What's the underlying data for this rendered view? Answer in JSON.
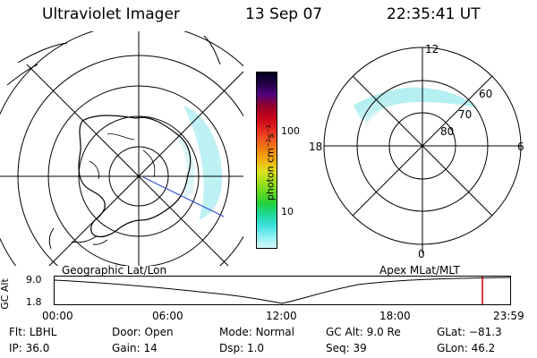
{
  "header": {
    "instrument": "Ultraviolet Imager",
    "date": "13 Sep 07",
    "time": "22:35:41 UT"
  },
  "colorbar": {
    "unit_label": "photon cm⁻²s⁻¹",
    "ticks": [
      "100",
      "10"
    ],
    "colors": [
      "#000020",
      "#200040",
      "#500080",
      "#900030",
      "#c00018",
      "#e02020",
      "#f05020",
      "#f08010",
      "#f0b010",
      "#e0e020",
      "#a0e020",
      "#60d820",
      "#20d040",
      "#20d8a0",
      "#40e0e0",
      "#90f0f0",
      "#d8f8f8"
    ]
  },
  "left_map": {
    "caption": "Geographic Lat/Lon",
    "aurora_color": "#a8ecf0"
  },
  "right_map": {
    "caption": "Apex MLat/MLT",
    "mlt_labels": {
      "top": "12",
      "left": "18",
      "right": "6",
      "bottom": "0"
    },
    "lat_labels": [
      "60",
      "70",
      "80"
    ],
    "aurora_color": "#a8ecf0"
  },
  "timeline": {
    "y_label": "GC Alt",
    "y_ticks": [
      "9.0",
      "1.8"
    ],
    "x_ticks": [
      "00:00",
      "06:00",
      "12:00",
      "18:00",
      "23:59"
    ],
    "marker_color": "#d00000"
  },
  "status": {
    "row1": [
      {
        "label": "Flt:",
        "value": "LBHL"
      },
      {
        "label": "Door:",
        "value": "Open"
      },
      {
        "label": "Mode:",
        "value": "Normal"
      },
      {
        "label": "GC Alt:",
        "value": "9.0 Re"
      },
      {
        "label": "GLat:",
        "value": "−81.3"
      }
    ],
    "row2": [
      {
        "label": "IP:",
        "value": "36.0"
      },
      {
        "label": "Gain:",
        "value": "14"
      },
      {
        "label": "Dsp:",
        "value": "1.0"
      },
      {
        "label": "Seq:",
        "value": "39"
      },
      {
        "label": "GLon:",
        "value": "46.2"
      }
    ]
  }
}
